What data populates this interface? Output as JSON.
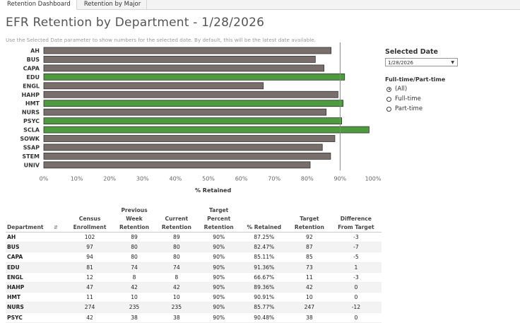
{
  "tabs": [
    {
      "label": "Retention Dashboard",
      "active": true
    },
    {
      "label": "Retention by Major",
      "active": false
    }
  ],
  "title": "EFR Retention by Department - 1/28/2026",
  "subtitle": "Use the Selected Date parameter to show numbers for the selected date. By default, this will be the latest date available.",
  "parameter": {
    "title": "Selected Date",
    "value": "1/28/2026"
  },
  "filter": {
    "title": "Full-time/Part-time",
    "options": [
      "(All)",
      "Full-time",
      "Part-time"
    ],
    "selected": "(All)"
  },
  "chart_data": {
    "type": "bar",
    "orientation": "horizontal",
    "categories": [
      "AH",
      "BUS",
      "CAPA",
      "EDU",
      "ENGL",
      "HAHP",
      "HMT",
      "NURS",
      "PSYC",
      "SCLA",
      "SOWK",
      "SSAP",
      "STEM",
      "UNIV"
    ],
    "values": [
      87.25,
      82.47,
      85.11,
      91.36,
      66.67,
      89.36,
      90.91,
      85.77,
      90.48,
      98.8,
      88.4,
      84.6,
      87.1,
      80.9
    ],
    "highlighted": [
      "EDU",
      "HMT",
      "PSYC",
      "SCLA"
    ],
    "reference_line": 90,
    "xlim": [
      0,
      100
    ],
    "xticks": [
      "0%",
      "10%",
      "20%",
      "30%",
      "40%",
      "50%",
      "60%",
      "70%",
      "80%",
      "90%",
      "100%"
    ],
    "xlabel": "% Retained",
    "colors": {
      "below": "#786e6b",
      "above": "#4e9a3e",
      "border": "#333333",
      "refline": "#888888"
    }
  },
  "table": {
    "headers": [
      [
        "Department"
      ],
      [
        "Census",
        "Enrollment"
      ],
      [
        "Previous",
        "Week",
        "Retention"
      ],
      [
        "Current",
        "Retention"
      ],
      [
        "Target",
        "Percent",
        "Retention"
      ],
      [
        "% Retained"
      ],
      [
        "Target",
        "Retention"
      ],
      [
        "Difference",
        "From Target"
      ]
    ],
    "rows": [
      [
        "AH",
        "102",
        "89",
        "89",
        "90%",
        "87.25%",
        "92",
        "-3"
      ],
      [
        "BUS",
        "97",
        "80",
        "80",
        "90%",
        "82.47%",
        "87",
        "-7"
      ],
      [
        "CAPA",
        "94",
        "80",
        "80",
        "90%",
        "85.11%",
        "85",
        "-5"
      ],
      [
        "EDU",
        "81",
        "74",
        "74",
        "90%",
        "91.36%",
        "73",
        "1"
      ],
      [
        "ENGL",
        "12",
        "8",
        "8",
        "90%",
        "66.67%",
        "11",
        "-3"
      ],
      [
        "HAHP",
        "47",
        "42",
        "42",
        "90%",
        "89.36%",
        "42",
        "0"
      ],
      [
        "HMT",
        "11",
        "10",
        "10",
        "90%",
        "90.91%",
        "10",
        "0"
      ],
      [
        "NURS",
        "274",
        "235",
        "235",
        "90%",
        "85.77%",
        "247",
        "-12"
      ],
      [
        "PSYC",
        "42",
        "38",
        "38",
        "90%",
        "90.48%",
        "38",
        "0"
      ]
    ]
  }
}
